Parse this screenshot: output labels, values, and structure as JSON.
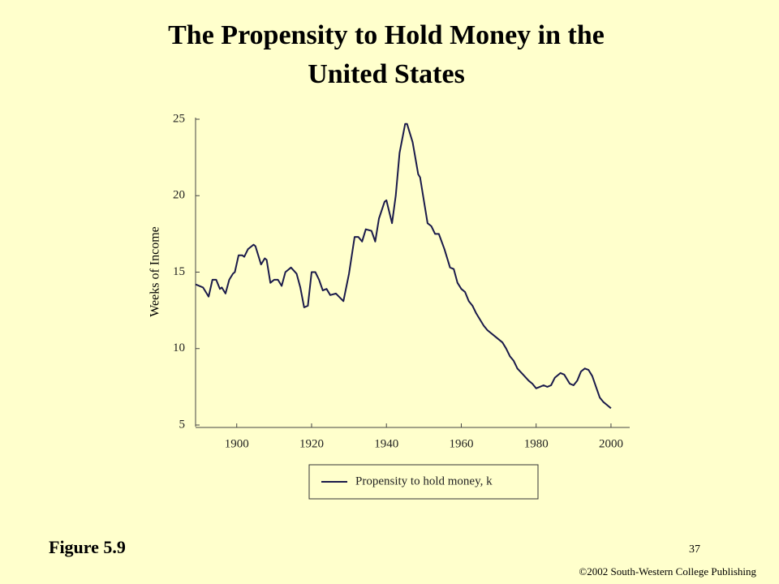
{
  "chart_data": {
    "type": "line",
    "title": [
      "The Propensity to Hold Money in the",
      "United States"
    ],
    "y_label": "Weeks of Income",
    "x": [
      1889,
      1891,
      1892.5,
      1893.5,
      1894.5,
      1895.5,
      1896,
      1897,
      1898,
      1899,
      1899.5,
      1900.5,
      1901.5,
      1902,
      1903,
      1904.5,
      1905,
      1906.5,
      1907.5,
      1908,
      1909,
      1910,
      1911,
      1912,
      1913,
      1914.5,
      1916,
      1917,
      1918,
      1919,
      1920,
      1921,
      1922,
      1923,
      1924,
      1925,
      1926.5,
      1928.5,
      1930,
      1931.5,
      1932.5,
      1933.5,
      1934.5,
      1936,
      1937,
      1938,
      1939.5,
      1940,
      1941.5,
      1942.5,
      1943.5,
      1945,
      1945.5,
      1947,
      1948.5,
      1949,
      1951,
      1952,
      1953,
      1954,
      1955.5,
      1957,
      1958,
      1959,
      1960,
      1961,
      1962,
      1963,
      1964,
      1966,
      1967,
      1969,
      1971,
      1972,
      1973,
      1974,
      1975,
      1976.5,
      1978,
      1979,
      1980,
      1981,
      1982,
      1983,
      1984,
      1985,
      1986.5,
      1987.5,
      1989,
      1990,
      1991,
      1992,
      1993,
      1994,
      1995,
      1996,
      1997,
      1998,
      1999,
      2000
    ],
    "series": [
      {
        "name": "Propensity to hold money, k",
        "color": "#1a1a4a",
        "values": [
          14.2,
          14.0,
          13.4,
          14.5,
          14.5,
          13.9,
          14.0,
          13.6,
          14.5,
          14.9,
          15.0,
          16.1,
          16.1,
          16.0,
          16.5,
          16.8,
          16.7,
          15.5,
          15.9,
          15.8,
          14.3,
          14.5,
          14.5,
          14.1,
          15.0,
          15.3,
          14.9,
          14.0,
          12.7,
          12.8,
          15.0,
          15.0,
          14.5,
          13.8,
          13.9,
          13.5,
          13.6,
          13.1,
          14.9,
          17.3,
          17.3,
          17.0,
          17.8,
          17.7,
          17.0,
          18.5,
          19.6,
          19.7,
          18.2,
          20.0,
          22.8,
          24.7,
          24.7,
          23.5,
          21.4,
          21.2,
          18.2,
          18.0,
          17.5,
          17.5,
          16.5,
          15.3,
          15.2,
          14.3,
          13.9,
          13.7,
          13.1,
          12.8,
          12.3,
          11.5,
          11.2,
          10.8,
          10.4,
          10.0,
          9.5,
          9.2,
          8.7,
          8.3,
          7.9,
          7.7,
          7.4,
          7.5,
          7.6,
          7.5,
          7.6,
          8.1,
          8.4,
          8.3,
          7.7,
          7.6,
          7.9,
          8.5,
          8.7,
          8.6,
          8.2,
          7.5,
          6.8,
          6.5,
          6.3,
          6.1
        ]
      }
    ],
    "xlim": [
      1889,
      2005
    ],
    "xticks": [
      1900,
      1920,
      1940,
      1960,
      1980,
      2000
    ],
    "ylim": [
      5,
      25
    ],
    "yticks": [
      5,
      10,
      15,
      20,
      25
    ]
  },
  "figure_label": "Figure 5.9",
  "page_number": "37",
  "copyright": "©2002 South-Western College Publishing"
}
